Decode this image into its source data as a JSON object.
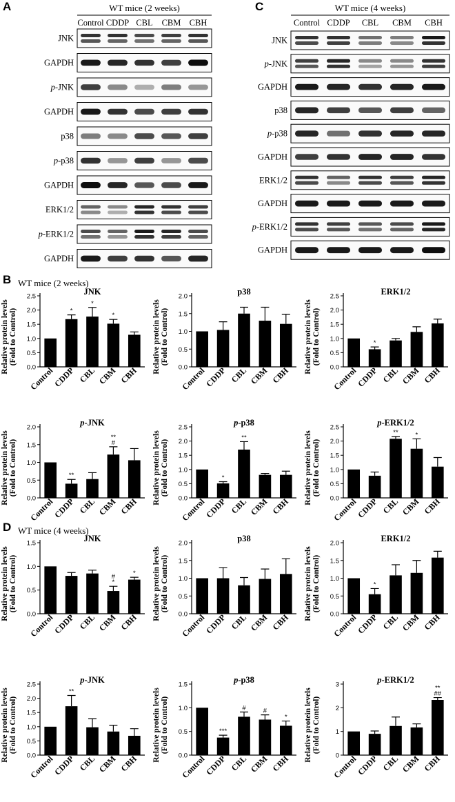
{
  "panels": {
    "A": "A",
    "B": "B",
    "C": "C",
    "D": "D"
  },
  "blot_A": {
    "title": "WT mice (2 weeks)",
    "lanes": [
      "Control",
      "CDDP",
      "CBL",
      "CBM",
      "CBH"
    ],
    "rows": [
      {
        "label": "JNK",
        "italic": "",
        "name": "JNK",
        "bands": [
          [
            0.8,
            0.65
          ],
          [
            0.8,
            0.6
          ],
          [
            0.7,
            0.55
          ],
          [
            0.75,
            0.6
          ],
          [
            0.8,
            0.65
          ]
        ],
        "double": true
      },
      {
        "label": "GAPDH",
        "italic": "",
        "name": "GAPDH",
        "bands": [
          [
            0.9
          ],
          [
            0.85
          ],
          [
            0.8
          ],
          [
            0.75
          ],
          [
            0.95
          ]
        ],
        "double": false
      },
      {
        "label": "-JNK",
        "italic": "p",
        "name": "p-JNK",
        "bands": [
          [
            0.75
          ],
          [
            0.45
          ],
          [
            0.3
          ],
          [
            0.5
          ],
          [
            0.4
          ]
        ],
        "double": false
      },
      {
        "label": "GAPDH",
        "italic": "",
        "name": "GAPDH",
        "bands": [
          [
            0.9
          ],
          [
            0.8
          ],
          [
            0.7
          ],
          [
            0.75
          ],
          [
            0.8
          ]
        ],
        "double": false
      },
      {
        "label": "p38",
        "italic": "",
        "name": "p38",
        "bands": [
          [
            0.5
          ],
          [
            0.45
          ],
          [
            0.7
          ],
          [
            0.65
          ],
          [
            0.75
          ]
        ],
        "double": false
      },
      {
        "label": "-p38",
        "italic": "p",
        "name": "p-p38",
        "bands": [
          [
            0.8
          ],
          [
            0.4
          ],
          [
            0.75
          ],
          [
            0.4
          ],
          [
            0.7
          ]
        ],
        "double": false
      },
      {
        "label": "GAPDH",
        "italic": "",
        "name": "GAPDH",
        "bands": [
          [
            0.95
          ],
          [
            0.85
          ],
          [
            0.65
          ],
          [
            0.7
          ],
          [
            0.9
          ]
        ],
        "double": false
      },
      {
        "label": "ERK1/2",
        "italic": "",
        "name": "ERK1/2",
        "bands": [
          [
            0.6,
            0.45
          ],
          [
            0.45,
            0.3
          ],
          [
            0.85,
            0.8
          ],
          [
            0.8,
            0.7
          ],
          [
            0.75,
            0.7
          ]
        ],
        "double": true
      },
      {
        "label": "-ERK1/2",
        "italic": "p",
        "name": "p-ERK1/2",
        "bands": [
          [
            0.7,
            0.55
          ],
          [
            0.6,
            0.4
          ],
          [
            0.9,
            0.8
          ],
          [
            0.85,
            0.75
          ],
          [
            0.7,
            0.6
          ]
        ],
        "double": true
      },
      {
        "label": "GAPDH",
        "italic": "",
        "name": "GAPDH",
        "bands": [
          [
            0.9
          ],
          [
            0.75
          ],
          [
            0.8
          ],
          [
            0.65
          ],
          [
            0.85
          ]
        ],
        "double": false
      }
    ]
  },
  "blot_C": {
    "title": "WT mice (4 weeks)",
    "lanes": [
      "Control",
      "CDDP",
      "CBL",
      "CBM",
      "CBH"
    ],
    "rows": [
      {
        "label": "JNK",
        "italic": "",
        "name": "JNK",
        "bands": [
          [
            0.8,
            0.7
          ],
          [
            0.8,
            0.75
          ],
          [
            0.55,
            0.5
          ],
          [
            0.5,
            0.45
          ],
          [
            0.9,
            0.8
          ]
        ],
        "double": true
      },
      {
        "label": "-JNK",
        "italic": "p",
        "name": "p-JNK",
        "bands": [
          [
            0.75,
            0.65
          ],
          [
            0.85,
            0.8
          ],
          [
            0.45,
            0.35
          ],
          [
            0.45,
            0.4
          ],
          [
            0.8,
            0.75
          ]
        ],
        "double": true
      },
      {
        "label": "GAPDH",
        "italic": "",
        "name": "GAPDH",
        "bands": [
          [
            0.9
          ],
          [
            0.85
          ],
          [
            0.8
          ],
          [
            0.85
          ],
          [
            0.9
          ]
        ],
        "double": false
      },
      {
        "label": "p38",
        "italic": "",
        "name": "p38",
        "bands": [
          [
            0.85
          ],
          [
            0.75
          ],
          [
            0.65
          ],
          [
            0.75
          ],
          [
            0.6
          ]
        ],
        "double": false
      },
      {
        "label": "-p38",
        "italic": "p",
        "name": "p-p38",
        "bands": [
          [
            0.85
          ],
          [
            0.55
          ],
          [
            0.8
          ],
          [
            0.85
          ],
          [
            0.85
          ]
        ],
        "double": false
      },
      {
        "label": "GAPDH",
        "italic": "",
        "name": "GAPDH",
        "bands": [
          [
            0.75
          ],
          [
            0.8
          ],
          [
            0.85
          ],
          [
            0.85
          ],
          [
            0.8
          ]
        ],
        "double": false
      },
      {
        "label": "ERK1/2",
        "italic": "",
        "name": "ERK1/2",
        "bands": [
          [
            0.8,
            0.7
          ],
          [
            0.6,
            0.45
          ],
          [
            0.8,
            0.7
          ],
          [
            0.75,
            0.65
          ],
          [
            0.85,
            0.8
          ]
        ],
        "double": true
      },
      {
        "label": "GAPDH",
        "italic": "",
        "name": "GAPDH",
        "bands": [
          [
            0.9
          ],
          [
            0.9
          ],
          [
            0.9
          ],
          [
            0.9
          ],
          [
            0.9
          ]
        ],
        "double": false
      },
      {
        "label": "-ERK1/2",
        "italic": "p",
        "name": "p-ERK1/2",
        "bands": [
          [
            0.8,
            0.7
          ],
          [
            0.75,
            0.65
          ],
          [
            0.65,
            0.55
          ],
          [
            0.7,
            0.6
          ],
          [
            0.9,
            0.85
          ]
        ],
        "double": true
      },
      {
        "label": "GAPDH",
        "italic": "",
        "name": "GAPDH",
        "bands": [
          [
            0.9
          ],
          [
            0.9
          ],
          [
            0.9
          ],
          [
            0.9
          ],
          [
            0.95
          ]
        ],
        "double": false
      }
    ]
  },
  "section_B_title": "WT mice (2 weeks)",
  "section_D_title": "WT mice (4 weeks)",
  "chart_data": [
    {
      "type": "bar",
      "section": "B",
      "title": "JNK",
      "title_italic": "",
      "ylabel": [
        "Relative protein levels",
        "(Fold to Control)"
      ],
      "categories": [
        "Control",
        "CDDP",
        "CBL",
        "CBM",
        "CBH"
      ],
      "values": [
        1.0,
        1.68,
        1.77,
        1.52,
        1.13
      ],
      "errors": [
        0,
        0.15,
        0.32,
        0.15,
        0.1
      ],
      "marks": [
        "",
        "*",
        "*",
        "*",
        ""
      ],
      "ylim": [
        0,
        2.5
      ],
      "yticks": [
        0,
        0.5,
        1.0,
        1.5,
        2.0,
        2.5
      ],
      "ytick_labels": [
        "0.0",
        "0.5",
        "1.0",
        "1.5",
        "2.0",
        "2.5"
      ]
    },
    {
      "type": "bar",
      "section": "B",
      "title": "p38",
      "title_italic": "",
      "ylabel": [
        "Relative protein levels",
        "(Fold to Control)"
      ],
      "categories": [
        "Control",
        "CDDP",
        "CBL",
        "CBM",
        "CBH"
      ],
      "values": [
        1.0,
        1.04,
        1.5,
        1.3,
        1.21
      ],
      "errors": [
        0,
        0.23,
        0.18,
        0.38,
        0.27
      ],
      "marks": [
        "",
        "",
        "",
        "",
        ""
      ],
      "ylim": [
        0,
        2.0
      ],
      "yticks": [
        0,
        0.5,
        1.0,
        1.5,
        2.0
      ],
      "ytick_labels": [
        "0.0",
        "0.5",
        "1.0",
        "1.5",
        "2.0"
      ]
    },
    {
      "type": "bar",
      "section": "B",
      "title": "ERK1/2",
      "title_italic": "",
      "ylabel": [
        "Relative protein levels",
        "(Fold to Control)"
      ],
      "categories": [
        "Control",
        "CDDP",
        "CBL",
        "CBM",
        "CBH"
      ],
      "values": [
        1.0,
        0.62,
        0.93,
        1.23,
        1.53
      ],
      "errors": [
        0,
        0.08,
        0.07,
        0.18,
        0.15
      ],
      "marks": [
        "",
        "*",
        "",
        "",
        ""
      ],
      "ylim": [
        0,
        2.5
      ],
      "yticks": [
        0,
        0.5,
        1.0,
        1.5,
        2.0,
        2.5
      ],
      "ytick_labels": [
        "0.0",
        "0.5",
        "1.0",
        "1.5",
        "2.0",
        "2.5"
      ]
    },
    {
      "type": "bar",
      "section": "B",
      "title": "-JNK",
      "title_italic": "p",
      "ylabel": [
        "Relative protein levels",
        "(Fold to Control)"
      ],
      "categories": [
        "Control",
        "CDDP",
        "CBL",
        "CBM",
        "CBH"
      ],
      "values": [
        1.0,
        0.4,
        0.53,
        1.22,
        1.06
      ],
      "errors": [
        0,
        0.12,
        0.18,
        0.22,
        0.33
      ],
      "marks": [
        "",
        "**",
        "",
        "**|#",
        ""
      ],
      "ylim": [
        0,
        2.0
      ],
      "yticks": [
        0,
        0.5,
        1.0,
        1.5,
        2.0
      ],
      "ytick_labels": [
        "0.0",
        "0.5",
        "1.0",
        "1.5",
        "2.0"
      ]
    },
    {
      "type": "bar",
      "section": "B",
      "title": "-p38",
      "title_italic": "p",
      "ylabel": [
        "Relative protein levels",
        "(Fold to Control)"
      ],
      "categories": [
        "Control",
        "CDDP",
        "CBL",
        "CBM",
        "CBH"
      ],
      "values": [
        1.0,
        0.51,
        1.7,
        0.81,
        0.81
      ],
      "errors": [
        0,
        0.06,
        0.28,
        0.05,
        0.13
      ],
      "marks": [
        "",
        "*",
        "**",
        "",
        ""
      ],
      "ylim": [
        0,
        2.5
      ],
      "yticks": [
        0,
        0.5,
        1.0,
        1.5,
        2.0,
        2.5
      ],
      "ytick_labels": [
        "0.0",
        "0.5",
        "1.0",
        "1.5",
        "2.0",
        "2.5"
      ]
    },
    {
      "type": "bar",
      "section": "B",
      "title": "-ERK1/2",
      "title_italic": "p",
      "ylabel": [
        "Relative protein levels",
        "(Fold to Control)"
      ],
      "categories": [
        "Control",
        "CDDP",
        "CBL",
        "CBM",
        "CBH"
      ],
      "values": [
        1.0,
        0.78,
        2.08,
        1.73,
        1.1
      ],
      "errors": [
        0,
        0.13,
        0.08,
        0.35,
        0.32
      ],
      "marks": [
        "",
        "",
        "**",
        "*",
        ""
      ],
      "ylim": [
        0,
        2.5
      ],
      "yticks": [
        0,
        0.5,
        1.0,
        1.5,
        2.0,
        2.5
      ],
      "ytick_labels": [
        "0.0",
        "0.5",
        "1.0",
        "1.5",
        "2.0",
        "2.5"
      ]
    },
    {
      "type": "bar",
      "section": "D",
      "title": "JNK",
      "title_italic": "",
      "ylabel": [
        "Relative protein levels",
        "(Fold to Control)"
      ],
      "categories": [
        "Control",
        "CDDP",
        "CBL",
        "CBM",
        "CBH"
      ],
      "values": [
        1.0,
        0.8,
        0.85,
        0.48,
        0.72
      ],
      "errors": [
        0,
        0.07,
        0.07,
        0.1,
        0.05
      ],
      "marks": [
        "",
        "",
        "",
        "#|*",
        "*"
      ],
      "ylim": [
        0,
        1.5
      ],
      "yticks": [
        0,
        0.5,
        1.0,
        1.5
      ],
      "ytick_labels": [
        "0.0",
        "0.5",
        "1.0",
        "1.5"
      ]
    },
    {
      "type": "bar",
      "section": "D",
      "title": "p38",
      "title_italic": "",
      "ylabel": [
        "Relative protein levels",
        "(Fold to Control)"
      ],
      "categories": [
        "Control",
        "CDDP",
        "CBL",
        "CBM",
        "CBH"
      ],
      "values": [
        1.0,
        1.0,
        0.8,
        0.98,
        1.12
      ],
      "errors": [
        0,
        0.3,
        0.22,
        0.28,
        0.43
      ],
      "marks": [
        "",
        "",
        "",
        "",
        ""
      ],
      "ylim": [
        0,
        2.0
      ],
      "yticks": [
        0,
        0.5,
        1.0,
        1.5,
        2.0
      ],
      "ytick_labels": [
        "0.0",
        "0.5",
        "1.0",
        "1.5",
        "2.0"
      ]
    },
    {
      "type": "bar",
      "section": "D",
      "title": "ERK1/2",
      "title_italic": "",
      "ylabel": [
        "Relative protein levels",
        "(Fold to Control)"
      ],
      "categories": [
        "Control",
        "CDDP",
        "CBL",
        "CBM",
        "CBH"
      ],
      "values": [
        1.0,
        0.55,
        1.08,
        1.15,
        1.58
      ],
      "errors": [
        0,
        0.16,
        0.3,
        0.35,
        0.18
      ],
      "marks": [
        "",
        "*",
        "",
        "",
        ""
      ],
      "ylim": [
        0,
        2.0
      ],
      "yticks": [
        0,
        0.5,
        1.0,
        1.5,
        2.0
      ],
      "ytick_labels": [
        "0.0",
        "0.5",
        "1.0",
        "1.5",
        "2.0"
      ]
    },
    {
      "type": "bar",
      "section": "D",
      "title": "-JNK",
      "title_italic": "p",
      "ylabel": [
        "Relative protein levels",
        "(Fold to Control)"
      ],
      "categories": [
        "Control",
        "CDDP",
        "CBL",
        "CBM",
        "CBH"
      ],
      "values": [
        1.0,
        1.72,
        0.98,
        0.83,
        0.68
      ],
      "errors": [
        0,
        0.38,
        0.3,
        0.22,
        0.25
      ],
      "marks": [
        "",
        "**",
        "",
        "",
        ""
      ],
      "ylim": [
        0,
        2.5
      ],
      "yticks": [
        0,
        0.5,
        1.0,
        1.5,
        2.0,
        2.5
      ],
      "ytick_labels": [
        "0.0",
        "0.5",
        "1.0",
        "1.5",
        "2.0",
        "2.5"
      ]
    },
    {
      "type": "bar",
      "section": "D",
      "title": "-p38",
      "title_italic": "p",
      "ylabel": [
        "Relative protein levels",
        "(Fold to Control)"
      ],
      "categories": [
        "Control",
        "CDDP",
        "CBL",
        "CBM",
        "CBH"
      ],
      "values": [
        1.0,
        0.37,
        0.81,
        0.75,
        0.62
      ],
      "errors": [
        0,
        0.05,
        0.1,
        0.1,
        0.1
      ],
      "marks": [
        "",
        "***",
        "#",
        "#",
        "*"
      ],
      "ylim": [
        0,
        1.5
      ],
      "yticks": [
        0,
        0.5,
        1.0,
        1.5
      ],
      "ytick_labels": [
        "0.0",
        "0.5",
        "1.0",
        "1.5"
      ]
    },
    {
      "type": "bar",
      "section": "D",
      "title": "-ERK1/2",
      "title_italic": "p",
      "ylabel": [
        "Relative protein levels",
        "(Fold to Control)"
      ],
      "categories": [
        "Control",
        "CDDP",
        "CBL",
        "CBM",
        "CBH"
      ],
      "values": [
        1.0,
        0.9,
        1.23,
        1.17,
        2.33
      ],
      "errors": [
        0,
        0.12,
        0.38,
        0.15,
        0.1
      ],
      "marks": [
        "",
        "",
        "",
        "",
        "**|##"
      ],
      "ylim": [
        0,
        3
      ],
      "yticks": [
        0,
        1,
        2,
        3
      ],
      "ytick_labels": [
        "0",
        "1",
        "2",
        "3"
      ]
    }
  ]
}
